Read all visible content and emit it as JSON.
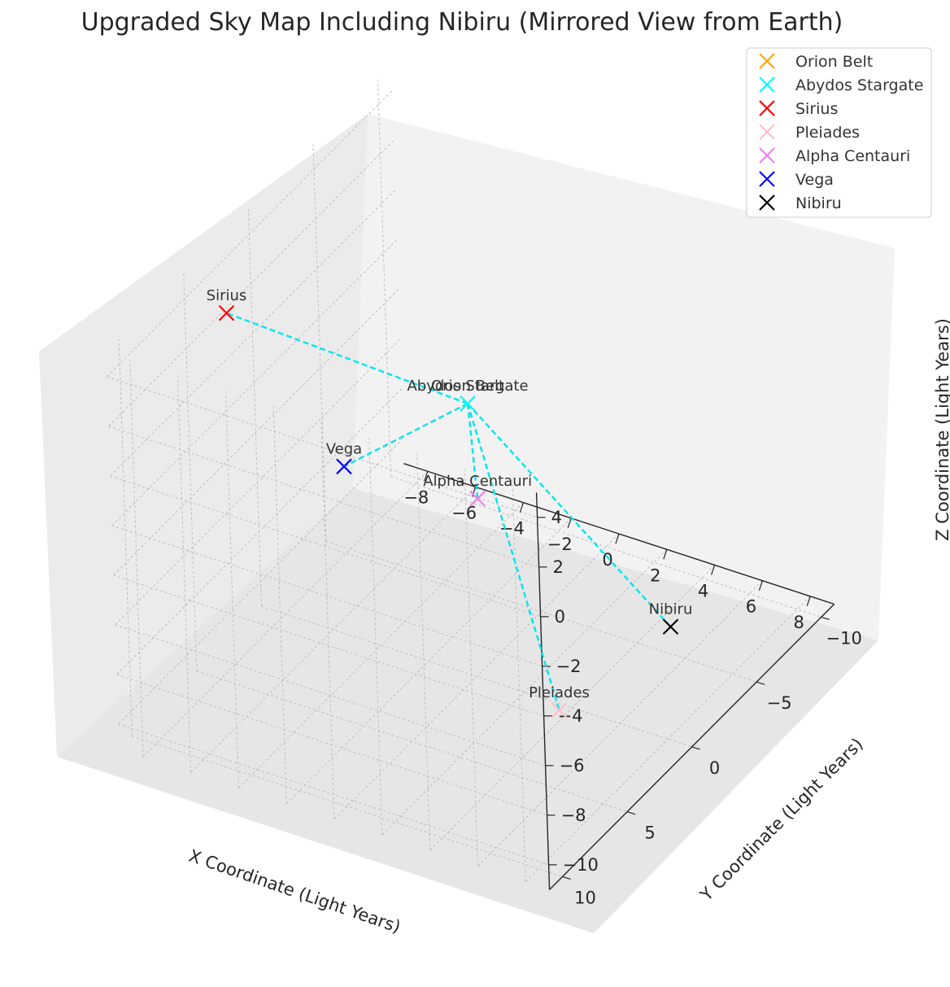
{
  "chart_data": {
    "type": "scatter",
    "projection": "3d",
    "title": "Upgraded Sky Map Including Nibiru (Mirrored View from Earth)",
    "xlabel": "X Coordinate (Light Years)",
    "ylabel": "Y Coordinate (Light Years)",
    "zlabel": "Z Coordinate (Light Years)",
    "xlim": [
      -9,
      9
    ],
    "ylim": [
      -11,
      11
    ],
    "zlim": [
      -11,
      5
    ],
    "xticks": [
      -8,
      -6,
      -4,
      -2,
      0,
      2,
      4,
      6,
      8
    ],
    "yticks": [
      -10,
      -5,
      0,
      5,
      10
    ],
    "zticks": [
      4,
      2,
      0,
      -2,
      -4,
      -6,
      -8,
      -10
    ],
    "grid": true,
    "legend_position": "top-right",
    "marker": "x",
    "connector": {
      "from": "Abydos Stargate",
      "style": "dashed",
      "color": "#00e5ee"
    },
    "series": [
      {
        "name": "Orion Belt",
        "color": "#ffa500",
        "x": 0,
        "y": 0,
        "z": 0
      },
      {
        "name": "Abydos Stargate",
        "color": "#00ffff",
        "x": 0,
        "y": 0,
        "z": 0
      },
      {
        "name": "Sirius",
        "color": "#ff0000",
        "x": -8.6,
        "y": 2.6,
        "z": 2.3
      },
      {
        "name": "Pleiades",
        "color": "#ffc0cb",
        "x": 3.5,
        "y": 0.1,
        "z": -11.2
      },
      {
        "name": "Alpha Centauri",
        "color": "#ee82ee",
        "x": 0.4,
        "y": 0.2,
        "z": -3.6
      },
      {
        "name": "Vega",
        "color": "#0000ff",
        "x": 0.9,
        "y": 11,
        "z": 3.5
      },
      {
        "name": "Nibiru",
        "color": "#000000",
        "x": 8.1,
        "y": -0.3,
        "z": -6.6
      }
    ]
  }
}
